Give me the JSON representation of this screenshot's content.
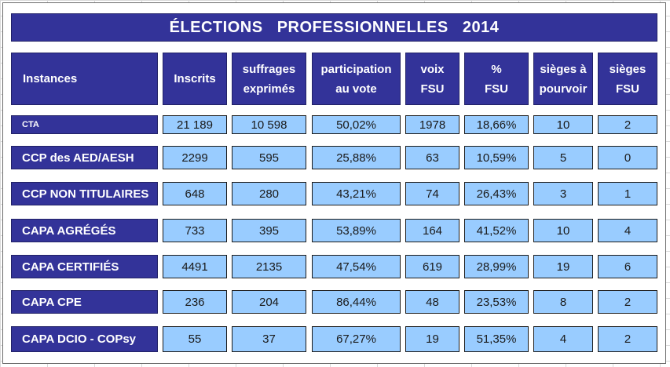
{
  "title": "ÉLECTIONS   PROFESSIONNELLES   2014",
  "headers": {
    "instances": "Instances",
    "inscrits": "Inscrits",
    "suffrages": "suffrages\nexprimés",
    "participation": "participation\nau vote",
    "voix": "voix\nFSU",
    "pct": "%\nFSU",
    "sieges_pourvoir": "sièges à\npourvoir",
    "sieges_fsu": "sièges\nFSU"
  },
  "rows": [
    {
      "instance": "CTA",
      "inscrits": "21 189",
      "suffrages": "10 598",
      "participation": "50,02%",
      "voix": "1978",
      "pct": "18,66%",
      "sieges_pourvoir": "10",
      "sieges_fsu": "2"
    },
    {
      "instance": "CCP des  AED/AESH",
      "inscrits": "2299",
      "suffrages": "595",
      "participation": "25,88%",
      "voix": "63",
      "pct": "10,59%",
      "sieges_pourvoir": "5",
      "sieges_fsu": "0"
    },
    {
      "instance": "CCP NON TITULAIRES",
      "inscrits": "648",
      "suffrages": "280",
      "participation": "43,21%",
      "voix": "74",
      "pct": "26,43%",
      "sieges_pourvoir": "3",
      "sieges_fsu": "1"
    },
    {
      "instance": "CAPA  AGRÉGÉS",
      "inscrits": "733",
      "suffrages": "395",
      "participation": "53,89%",
      "voix": "164",
      "pct": "41,52%",
      "sieges_pourvoir": "10",
      "sieges_fsu": "4"
    },
    {
      "instance": "CAPA CERTIFIÉS",
      "inscrits": "4491",
      "suffrages": "2135",
      "participation": "47,54%",
      "voix": "619",
      "pct": "28,99%",
      "sieges_pourvoir": "19",
      "sieges_fsu": "6"
    },
    {
      "instance": "CAPA CPE",
      "inscrits": "236",
      "suffrages": "204",
      "participation": "86,44%",
      "voix": "48",
      "pct": "23,53%",
      "sieges_pourvoir": "8",
      "sieges_fsu": "2"
    },
    {
      "instance": "CAPA DCIO - COPsy",
      "inscrits": "55",
      "suffrages": "37",
      "participation": "67,27%",
      "voix": "19",
      "pct": "51,35%",
      "sieges_pourvoir": "4",
      "sieges_fsu": "2"
    }
  ],
  "colors": {
    "header_bg": "#333399",
    "cell_bg": "#99ccff",
    "header_text": "#ffffff"
  }
}
